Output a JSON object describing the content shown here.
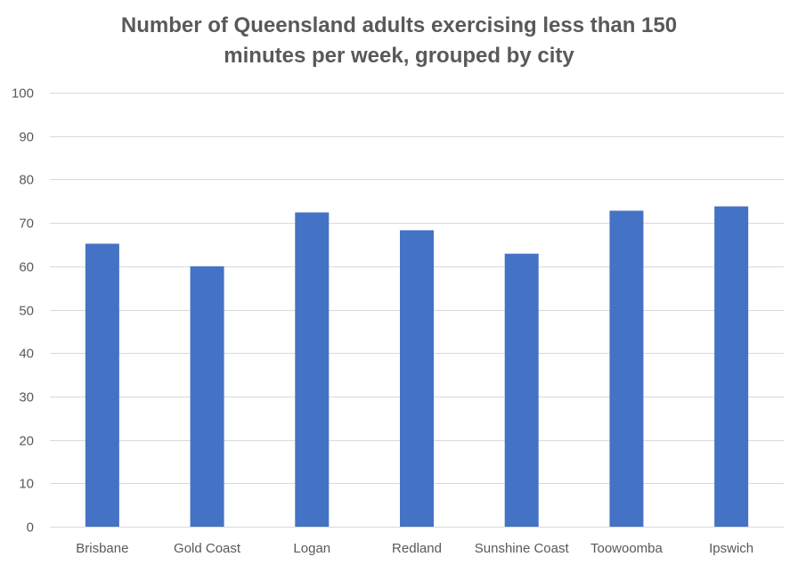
{
  "chart_data": {
    "type": "bar",
    "title_lines": [
      "Number of Queensland adults exercising less than 150",
      "minutes per week, grouped by city"
    ],
    "categories": [
      "Brisbane",
      "Gold Coast",
      "Logan",
      "Redland",
      "Sunshine Coast",
      "Toowoomba",
      "Ipswich"
    ],
    "values": [
      65.2,
      60.0,
      72.4,
      68.3,
      62.9,
      72.8,
      73.8
    ],
    "y_ticks": [
      0,
      10,
      20,
      30,
      40,
      50,
      60,
      70,
      80,
      90,
      100
    ],
    "ylim": [
      0,
      100
    ],
    "grid": true,
    "legend": "none",
    "bar_color": "#4472c4",
    "grid_color": "#d9d9d9",
    "text_color": "#595959"
  }
}
